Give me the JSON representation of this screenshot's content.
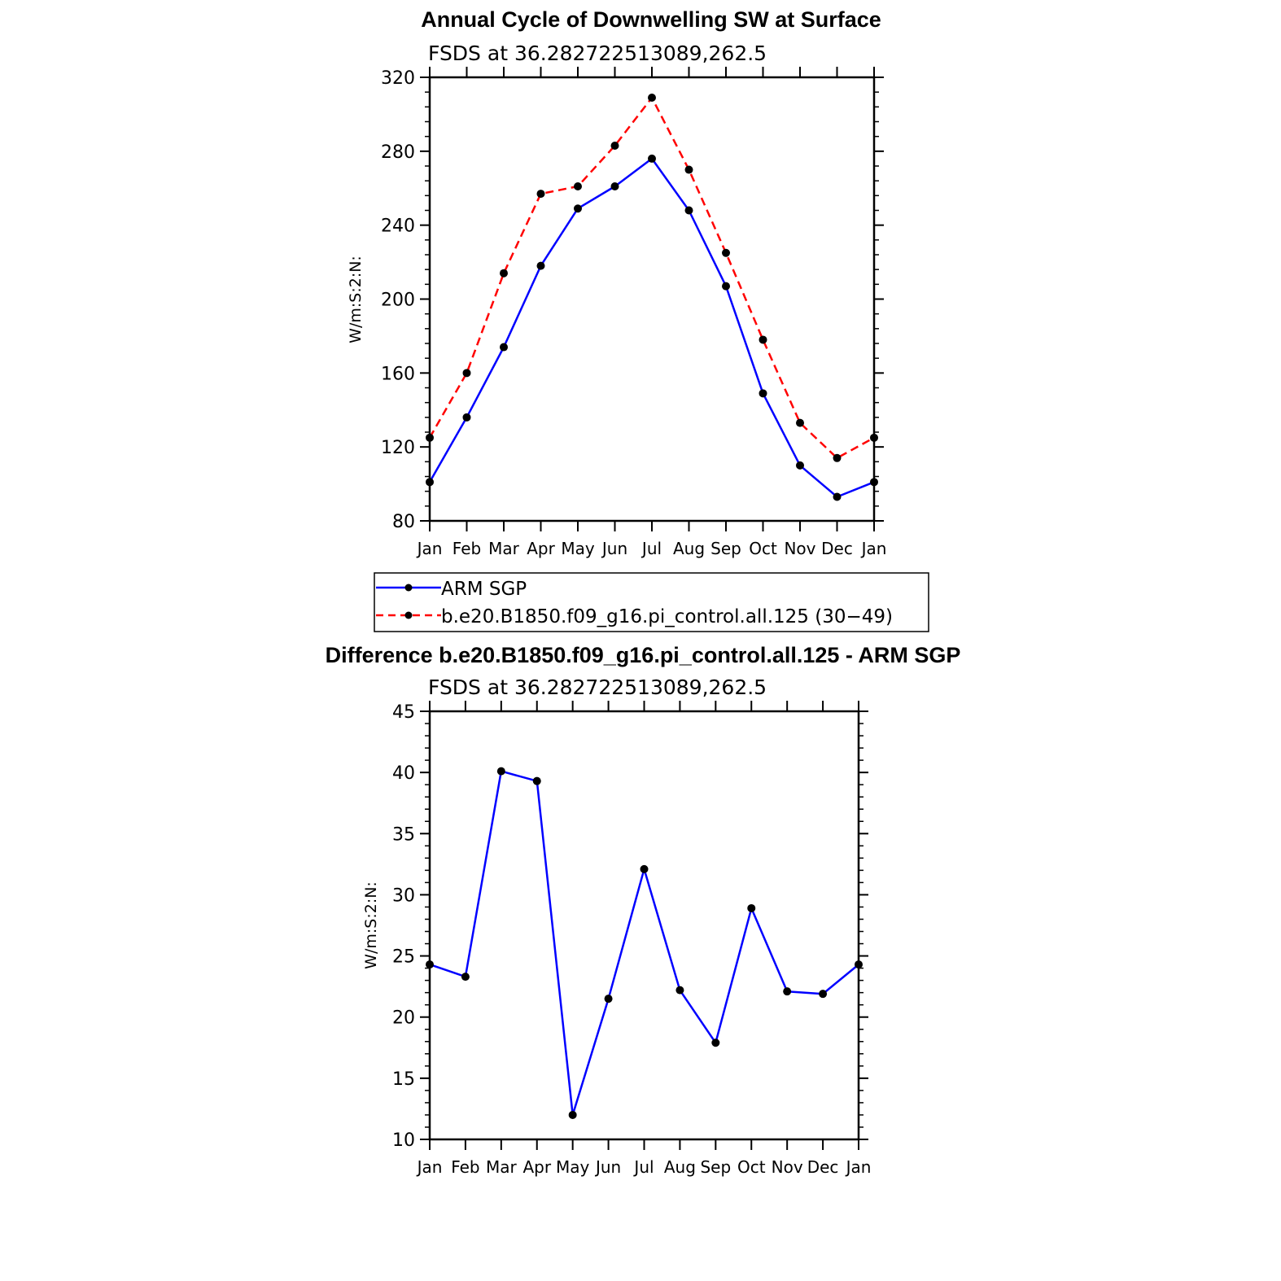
{
  "chart_data": [
    {
      "type": "line",
      "title": "Annual Cycle of Downwelling SW at Surface",
      "subtitle": "FSDS at 36.282722513089,262.5",
      "xlabel": "",
      "ylabel": "W/m:S:2:N:",
      "categories": [
        "Jan",
        "Feb",
        "Mar",
        "Apr",
        "May",
        "Jun",
        "Jul",
        "Aug",
        "Sep",
        "Oct",
        "Nov",
        "Dec",
        "Jan"
      ],
      "ylim": [
        80,
        320
      ],
      "yticks": [
        80,
        120,
        160,
        200,
        240,
        280,
        320
      ],
      "grid": false,
      "legend_position": "bottom",
      "series": [
        {
          "name": "ARM SGP",
          "color": "#0000ff",
          "dash": "solid",
          "values": [
            101,
            136,
            174,
            218,
            249,
            261,
            276,
            248,
            207,
            149,
            110,
            93,
            101
          ]
        },
        {
          "name": "b.e20.B1850.f09_g16.pi_control.all.125 (30−49)",
          "color": "#ff0000",
          "dash": "dashed",
          "values": [
            125,
            160,
            214,
            257,
            261,
            283,
            309,
            270,
            225,
            178,
            133,
            114,
            125
          ]
        }
      ]
    },
    {
      "type": "line",
      "title": "Difference b.e20.B1850.f09_g16.pi_control.all.125 - ARM SGP",
      "subtitle": "FSDS at 36.282722513089,262.5",
      "xlabel": "",
      "ylabel": "W/m:S:2:N:",
      "categories": [
        "Jan",
        "Feb",
        "Mar",
        "Apr",
        "May",
        "Jun",
        "Jul",
        "Aug",
        "Sep",
        "Oct",
        "Nov",
        "Dec",
        "Jan"
      ],
      "ylim": [
        10,
        45
      ],
      "yticks": [
        10,
        15,
        20,
        25,
        30,
        35,
        40,
        45
      ],
      "grid": false,
      "series": [
        {
          "color": "#0000ff",
          "dash": "solid",
          "values": [
            24.3,
            23.3,
            40.1,
            39.3,
            12.0,
            21.5,
            32.1,
            22.2,
            17.9,
            28.9,
            22.1,
            21.9,
            24.3
          ]
        }
      ]
    }
  ]
}
